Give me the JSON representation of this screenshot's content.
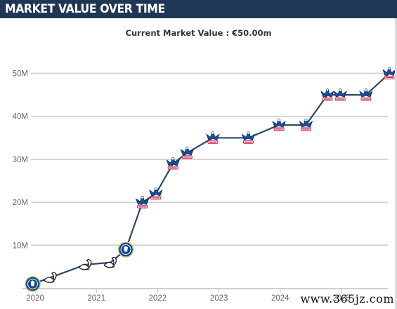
{
  "header": {
    "title": "MARKET VALUE OVER TIME"
  },
  "subtitle": "Current Market Value : €50.00m",
  "watermark": "www.365jz.com",
  "chart_data": {
    "type": "line",
    "title": "",
    "xlabel": "",
    "ylabel": "",
    "xlim": [
      2020.0,
      2025.8
    ],
    "ylim": [
      0,
      52
    ],
    "x_ticks": [
      2020,
      2021,
      2022,
      2023,
      2024,
      2025
    ],
    "x_tick_labels": [
      "2020",
      "2021",
      "2022",
      "2023",
      "2024",
      "2025"
    ],
    "y_ticks": [
      10,
      20,
      30,
      40,
      50
    ],
    "y_tick_labels": [
      "10M",
      "20M",
      "30M",
      "40M",
      "50M"
    ],
    "grid": true,
    "line_color": "#2e4a66",
    "points": [
      {
        "x": 2019.96,
        "y": 1.0,
        "club": "chelsea"
      },
      {
        "x": 2020.25,
        "y": 2.5,
        "club": "swansea"
      },
      {
        "x": 2020.82,
        "y": 5.5,
        "club": "swansea"
      },
      {
        "x": 2021.23,
        "y": 6.0,
        "club": "swansea"
      },
      {
        "x": 2021.48,
        "y": 9.0,
        "club": "chelsea"
      },
      {
        "x": 2021.75,
        "y": 20.0,
        "club": "crystal-palace"
      },
      {
        "x": 2021.97,
        "y": 22.0,
        "club": "crystal-palace"
      },
      {
        "x": 2022.25,
        "y": 29.0,
        "club": "crystal-palace"
      },
      {
        "x": 2022.48,
        "y": 31.5,
        "club": "crystal-palace"
      },
      {
        "x": 2022.9,
        "y": 35.0,
        "club": "crystal-palace"
      },
      {
        "x": 2023.48,
        "y": 35.0,
        "club": "crystal-palace"
      },
      {
        "x": 2023.98,
        "y": 38.0,
        "club": "crystal-palace"
      },
      {
        "x": 2024.42,
        "y": 38.0,
        "club": "crystal-palace"
      },
      {
        "x": 2024.77,
        "y": 45.0,
        "club": "crystal-palace"
      },
      {
        "x": 2024.98,
        "y": 45.0,
        "club": "crystal-palace"
      },
      {
        "x": 2025.4,
        "y": 45.0,
        "club": "crystal-palace"
      },
      {
        "x": 2025.78,
        "y": 50.0,
        "club": "crystal-palace"
      }
    ]
  },
  "colors": {
    "header_bg": "#1f3654",
    "grid": "#d4d4d4",
    "palace_blue": "#1b4f9c",
    "palace_red": "#c8102e",
    "chelsea_blue": "#034694"
  }
}
